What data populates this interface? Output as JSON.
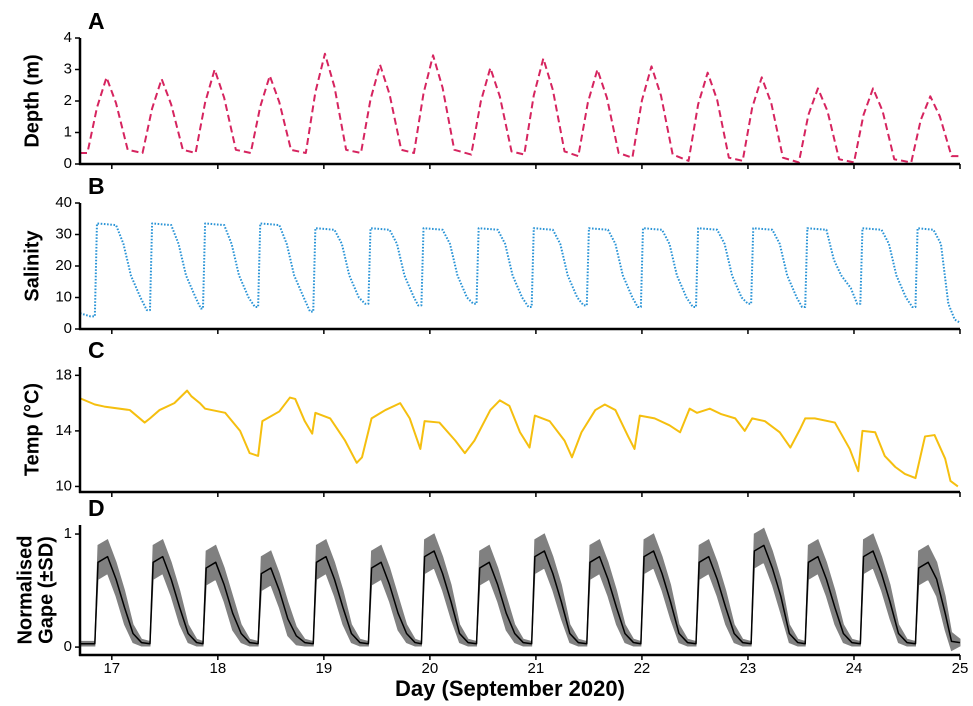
{
  "chart_data": [
    {
      "type": "line",
      "panel_label": "A",
      "ylabel": "Depth (m)",
      "xlim": [
        16.7,
        25
      ],
      "ylim": [
        0,
        4
      ],
      "yticks": [
        0,
        1,
        2,
        3,
        4
      ],
      "x": [
        16.7,
        16.77,
        16.86,
        16.95,
        17.04,
        17.15,
        17.29,
        17.38,
        17.47,
        17.56,
        17.67,
        17.79,
        17.88,
        17.97,
        18.06,
        18.17,
        18.31,
        18.4,
        18.49,
        18.58,
        18.69,
        18.83,
        18.92,
        19.01,
        19.1,
        19.21,
        19.35,
        19.44,
        19.53,
        19.62,
        19.73,
        19.85,
        19.94,
        20.03,
        20.12,
        20.23,
        20.39,
        20.48,
        20.57,
        20.66,
        20.77,
        20.89,
        20.98,
        21.07,
        21.16,
        21.27,
        21.4,
        21.49,
        21.58,
        21.67,
        21.78,
        21.91,
        22.0,
        22.09,
        22.18,
        22.29,
        22.44,
        22.53,
        22.62,
        22.71,
        22.82,
        22.95,
        23.04,
        23.13,
        23.22,
        23.33,
        23.48,
        23.57,
        23.66,
        23.75,
        23.86,
        24.0,
        24.09,
        24.18,
        24.27,
        24.38,
        24.54,
        24.63,
        24.72,
        24.81,
        24.92,
        25.0
      ],
      "series": [
        {
          "color": "#d6245f",
          "line_style": "dashed",
          "values": [
            0.35,
            0.35,
            1.79,
            2.75,
            1.93,
            0.45,
            0.35,
            1.76,
            2.7,
            1.89,
            0.45,
            0.35,
            1.95,
            3.0,
            2.1,
            0.45,
            0.35,
            1.82,
            2.8,
            1.96,
            0.45,
            0.35,
            2.28,
            3.5,
            2.45,
            0.45,
            0.35,
            2.05,
            3.15,
            2.21,
            0.45,
            0.35,
            2.24,
            3.45,
            2.42,
            0.45,
            0.3,
            1.98,
            3.05,
            2.14,
            0.4,
            0.3,
            2.18,
            3.35,
            2.35,
            0.4,
            0.25,
            1.95,
            3.0,
            2.1,
            0.35,
            0.2,
            2.02,
            3.1,
            2.17,
            0.3,
            0.1,
            1.89,
            2.9,
            2.03,
            0.2,
            0.1,
            1.79,
            2.75,
            1.93,
            0.2,
            0.05,
            1.56,
            2.4,
            1.68,
            0.15,
            0.05,
            1.56,
            2.4,
            1.68,
            0.15,
            0.05,
            1.4,
            2.15,
            1.51,
            0.25,
            0.25
          ]
        }
      ]
    },
    {
      "type": "line",
      "panel_label": "B",
      "ylabel": "Salinity",
      "xlim": [
        16.7,
        25
      ],
      "ylim": [
        0,
        40
      ],
      "yticks": [
        0,
        10,
        20,
        30,
        40
      ],
      "x": [
        16.7,
        16.8,
        16.84,
        16.86,
        17.04,
        17.11,
        17.18,
        17.27,
        17.33,
        17.36,
        17.38,
        17.56,
        17.63,
        17.7,
        17.79,
        17.84,
        17.86,
        17.88,
        18.06,
        18.13,
        18.2,
        18.29,
        18.35,
        18.38,
        18.4,
        18.58,
        18.65,
        18.72,
        18.81,
        18.87,
        18.9,
        18.92,
        19.1,
        19.17,
        19.24,
        19.33,
        19.39,
        19.42,
        19.44,
        19.62,
        19.69,
        19.76,
        19.85,
        19.89,
        19.92,
        19.94,
        20.12,
        20.19,
        20.26,
        20.35,
        20.41,
        20.44,
        20.46,
        20.64,
        20.71,
        20.78,
        20.87,
        20.93,
        20.96,
        20.98,
        21.16,
        21.23,
        21.3,
        21.39,
        21.45,
        21.48,
        21.5,
        21.68,
        21.75,
        21.82,
        21.91,
        21.96,
        21.99,
        22.01,
        22.19,
        22.26,
        22.33,
        22.42,
        22.48,
        22.51,
        22.53,
        22.71,
        22.78,
        22.85,
        22.94,
        23.0,
        23.03,
        23.05,
        23.23,
        23.3,
        23.37,
        23.46,
        23.51,
        23.54,
        23.56,
        23.74,
        23.81,
        23.88,
        23.97,
        24.03,
        24.06,
        24.08,
        24.26,
        24.33,
        24.4,
        24.49,
        24.55,
        24.58,
        24.6,
        24.75,
        24.82,
        24.89,
        24.95,
        25.0
      ],
      "series": [
        {
          "color": "#2a94d6",
          "line_style": "dotted",
          "values": [
            5,
            4,
            4,
            33.5,
            33,
            27,
            17,
            10,
            6,
            6,
            33.5,
            33,
            27,
            17,
            10,
            6.5,
            6.5,
            33.5,
            33,
            27,
            17,
            10,
            7,
            7,
            33.5,
            33,
            27,
            17,
            10,
            5.5,
            5.5,
            32,
            31.5,
            27,
            17,
            10,
            8,
            8,
            32,
            31.5,
            27,
            17,
            10,
            7.5,
            7.5,
            32,
            31.5,
            27,
            17,
            10,
            8,
            8,
            32,
            31.5,
            27,
            17,
            10,
            7,
            7,
            32,
            31.5,
            27,
            17,
            10,
            7.5,
            7.5,
            32,
            31.5,
            27,
            17,
            10,
            7,
            7,
            32,
            31.5,
            27,
            17,
            10,
            7,
            7,
            32,
            31.5,
            27,
            17,
            10,
            8,
            8,
            32,
            31.5,
            27,
            17,
            10,
            7,
            7,
            32,
            31.5,
            22,
            17,
            13,
            8,
            8,
            32,
            31.5,
            27,
            17,
            10,
            7,
            7,
            32,
            31.5,
            27,
            8,
            3,
            2
          ]
        }
      ]
    },
    {
      "type": "line",
      "panel_label": "C",
      "ylabel": "Temp (°C)",
      "xlim": [
        16.7,
        25
      ],
      "ylim": [
        9.6,
        18.6
      ],
      "yticks": [
        10,
        14,
        18
      ],
      "x": [
        16.7,
        16.84,
        16.93,
        17.17,
        17.31,
        17.36,
        17.45,
        17.59,
        17.71,
        17.75,
        17.83,
        17.88,
        18.07,
        18.21,
        18.3,
        18.38,
        18.42,
        18.58,
        18.68,
        18.73,
        18.82,
        18.89,
        18.92,
        19.06,
        19.2,
        19.31,
        19.36,
        19.45,
        19.58,
        19.72,
        19.81,
        19.91,
        19.95,
        20.09,
        20.24,
        20.33,
        20.42,
        20.57,
        20.66,
        20.75,
        20.85,
        20.94,
        20.99,
        21.13,
        21.27,
        21.34,
        21.43,
        21.56,
        21.65,
        21.75,
        21.87,
        21.93,
        21.98,
        22.12,
        22.26,
        22.36,
        22.45,
        22.52,
        22.64,
        22.75,
        22.88,
        22.97,
        23.04,
        23.16,
        23.3,
        23.4,
        23.49,
        23.54,
        23.63,
        23.82,
        23.96,
        24.04,
        24.08,
        24.2,
        24.29,
        24.39,
        24.48,
        24.58,
        24.67,
        24.76,
        24.86,
        24.91,
        24.98
      ],
      "series": [
        {
          "color": "#f5bf0f",
          "line_style": "solid",
          "values": [
            16.35,
            15.9,
            15.75,
            15.5,
            14.6,
            14.9,
            15.5,
            16,
            16.9,
            16.5,
            16,
            15.6,
            15.3,
            14,
            12.4,
            12.2,
            14.7,
            15.4,
            16.4,
            16.3,
            14.7,
            13.8,
            15.3,
            14.9,
            13.3,
            11.7,
            12.1,
            14.9,
            15.5,
            16,
            14.9,
            12.7,
            14.7,
            14.6,
            13.3,
            12.4,
            13.3,
            15.5,
            16.2,
            15.8,
            13.9,
            12.8,
            15.1,
            14.7,
            13.3,
            12.1,
            13.9,
            15.5,
            15.9,
            15.5,
            13.6,
            12.7,
            15.1,
            14.9,
            14.4,
            13.9,
            15.6,
            15.3,
            15.6,
            15.2,
            14.9,
            14,
            14.9,
            14.7,
            13.9,
            12.8,
            14.1,
            14.9,
            14.9,
            14.6,
            12.7,
            11.1,
            14,
            13.9,
            12.2,
            11.4,
            10.9,
            10.6,
            13.6,
            13.7,
            12,
            10.4,
            10
          ]
        }
      ]
    },
    {
      "type": "line",
      "panel_label": "D",
      "ylabel": [
        "Normalised",
        "Gape (±SD)"
      ],
      "xlabel": "Day (September 2020)",
      "xlim": [
        16.7,
        25
      ],
      "ylim": [
        -0.07,
        1.08
      ],
      "yticks": [
        0,
        1
      ],
      "xticks": [
        17,
        18,
        19,
        20,
        21,
        22,
        23,
        24,
        25
      ],
      "band_color": "#808080",
      "x": [
        16.7,
        16.84,
        16.87,
        16.96,
        17.04,
        17.12,
        17.2,
        17.28,
        17.36,
        17.39,
        17.48,
        17.56,
        17.64,
        17.72,
        17.8,
        17.86,
        17.89,
        17.98,
        18.06,
        18.14,
        18.22,
        18.3,
        18.38,
        18.41,
        18.5,
        18.58,
        18.66,
        18.74,
        18.82,
        18.9,
        18.93,
        19.02,
        19.1,
        19.18,
        19.26,
        19.34,
        19.42,
        19.45,
        19.54,
        19.62,
        19.7,
        19.78,
        19.86,
        19.92,
        19.95,
        20.04,
        20.12,
        20.2,
        20.28,
        20.36,
        20.44,
        20.47,
        20.56,
        20.64,
        20.72,
        20.8,
        20.88,
        20.96,
        20.99,
        21.08,
        21.16,
        21.24,
        21.32,
        21.4,
        21.48,
        21.51,
        21.6,
        21.68,
        21.76,
        21.84,
        21.92,
        21.99,
        22.02,
        22.11,
        22.19,
        22.27,
        22.35,
        22.43,
        22.51,
        22.54,
        22.63,
        22.71,
        22.79,
        22.87,
        22.95,
        23.03,
        23.06,
        23.15,
        23.23,
        23.31,
        23.39,
        23.47,
        23.54,
        23.57,
        23.66,
        23.74,
        23.82,
        23.9,
        23.98,
        24.06,
        24.09,
        24.18,
        24.26,
        24.34,
        24.42,
        24.5,
        24.58,
        24.61,
        24.7,
        24.78,
        24.86,
        24.92,
        25.0
      ],
      "series": [
        {
          "color": "#000000",
          "line_style": "solid",
          "values": [
            0.03,
            0.03,
            0.75,
            0.8,
            0.6,
            0.35,
            0.12,
            0.04,
            0.03,
            0.75,
            0.8,
            0.6,
            0.35,
            0.12,
            0.04,
            0.03,
            0.7,
            0.75,
            0.55,
            0.3,
            0.12,
            0.04,
            0.03,
            0.65,
            0.7,
            0.5,
            0.25,
            0.1,
            0.04,
            0.03,
            0.75,
            0.8,
            0.6,
            0.35,
            0.12,
            0.04,
            0.03,
            0.7,
            0.75,
            0.55,
            0.3,
            0.12,
            0.04,
            0.03,
            0.8,
            0.85,
            0.65,
            0.4,
            0.12,
            0.04,
            0.03,
            0.7,
            0.75,
            0.55,
            0.3,
            0.12,
            0.04,
            0.03,
            0.8,
            0.85,
            0.65,
            0.4,
            0.12,
            0.04,
            0.03,
            0.75,
            0.8,
            0.6,
            0.35,
            0.12,
            0.04,
            0.03,
            0.8,
            0.85,
            0.65,
            0.4,
            0.12,
            0.04,
            0.03,
            0.75,
            0.8,
            0.6,
            0.35,
            0.12,
            0.04,
            0.03,
            0.85,
            0.9,
            0.7,
            0.45,
            0.12,
            0.04,
            0.03,
            0.75,
            0.8,
            0.6,
            0.35,
            0.12,
            0.04,
            0.03,
            0.8,
            0.85,
            0.65,
            0.4,
            0.12,
            0.04,
            0.03,
            0.7,
            0.75,
            0.6,
            0.3,
            0.05,
            0.04
          ],
          "sd": [
            0.02,
            0.02,
            0.15,
            0.15,
            0.15,
            0.15,
            0.08,
            0.03,
            0.02,
            0.15,
            0.15,
            0.15,
            0.15,
            0.08,
            0.03,
            0.02,
            0.15,
            0.15,
            0.15,
            0.15,
            0.08,
            0.03,
            0.02,
            0.15,
            0.15,
            0.15,
            0.15,
            0.08,
            0.03,
            0.02,
            0.15,
            0.15,
            0.15,
            0.15,
            0.08,
            0.03,
            0.02,
            0.15,
            0.15,
            0.15,
            0.15,
            0.08,
            0.03,
            0.02,
            0.15,
            0.15,
            0.15,
            0.15,
            0.08,
            0.03,
            0.02,
            0.15,
            0.15,
            0.15,
            0.15,
            0.08,
            0.03,
            0.02,
            0.15,
            0.15,
            0.15,
            0.15,
            0.08,
            0.03,
            0.02,
            0.15,
            0.15,
            0.15,
            0.15,
            0.08,
            0.03,
            0.02,
            0.15,
            0.15,
            0.15,
            0.15,
            0.08,
            0.03,
            0.02,
            0.15,
            0.15,
            0.15,
            0.15,
            0.08,
            0.03,
            0.02,
            0.15,
            0.15,
            0.15,
            0.15,
            0.08,
            0.03,
            0.02,
            0.15,
            0.15,
            0.15,
            0.15,
            0.08,
            0.03,
            0.02,
            0.15,
            0.15,
            0.15,
            0.15,
            0.08,
            0.03,
            0.02,
            0.15,
            0.15,
            0.15,
            0.15,
            0.08,
            0.03
          ]
        }
      ]
    }
  ]
}
